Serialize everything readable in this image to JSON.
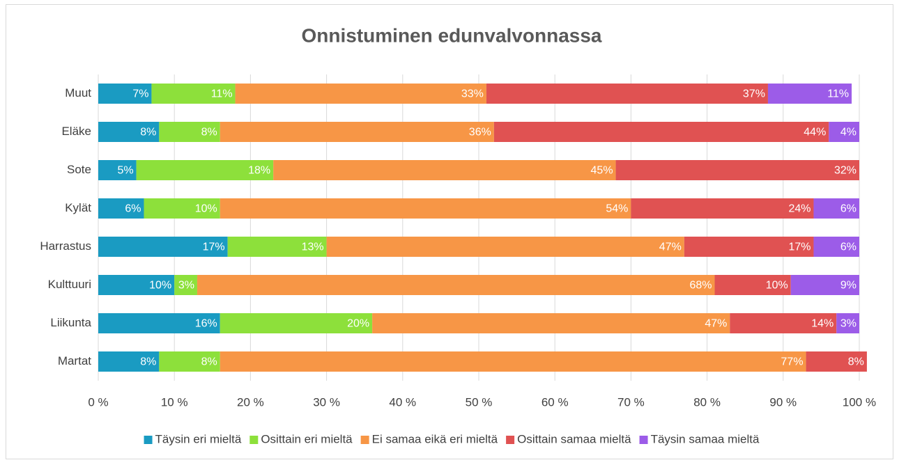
{
  "chart_data": {
    "type": "stacked_bar_horizontal",
    "title": "Onnistuminen edunvalvonnassa",
    "categories": [
      "Muut",
      "Eläke",
      "Sote",
      "Kylät",
      "Harrastus",
      "Kulttuuri",
      "Liikunta",
      "Martat"
    ],
    "series": [
      {
        "name": "Täysin eri mieltä",
        "color": "#1a9bc2",
        "values": [
          7,
          8,
          5,
          6,
          17,
          10,
          16,
          8
        ],
        "value_labels": [
          "7%",
          "8%",
          "5%",
          "6%",
          "17%",
          "10%",
          "16%",
          "8%"
        ]
      },
      {
        "name": "Osittain eri mieltä",
        "color": "#8de03b",
        "values": [
          11,
          8,
          18,
          10,
          13,
          3,
          20,
          8
        ],
        "value_labels": [
          "11%",
          "8%",
          "18%",
          "10%",
          "13%",
          "3%",
          "20%",
          "8%"
        ]
      },
      {
        "name": "Ei samaa eikä eri mieltä",
        "color": "#f79646",
        "values": [
          33,
          36,
          45,
          54,
          47,
          68,
          47,
          77
        ],
        "value_labels": [
          "33%",
          "36%",
          "45%",
          "54%",
          "47%",
          "68%",
          "47%",
          "77%"
        ]
      },
      {
        "name": "Osittain samaa mieltä",
        "color": "#e05252",
        "values": [
          37,
          44,
          32,
          24,
          17,
          10,
          14,
          8
        ],
        "value_labels": [
          "37%",
          "44%",
          "32%",
          "24%",
          "17%",
          "10%",
          "14%",
          "8%"
        ]
      },
      {
        "name": "Täysin samaa mieltä",
        "color": "#9c5ce8",
        "values": [
          11,
          4,
          null,
          6,
          6,
          9,
          3,
          null
        ],
        "value_labels": [
          "11%",
          "4%",
          null,
          "6%",
          "6%",
          "9%",
          "3%",
          null
        ]
      }
    ],
    "xlim": [
      0,
      100
    ],
    "xticks": [
      {
        "value": 0,
        "label": "0 %"
      },
      {
        "value": 10,
        "label": "10 %"
      },
      {
        "value": 20,
        "label": "20 %"
      },
      {
        "value": 30,
        "label": "30 %"
      },
      {
        "value": 40,
        "label": "40 %"
      },
      {
        "value": 50,
        "label": "50 %"
      },
      {
        "value": 60,
        "label": "60 %"
      },
      {
        "value": 70,
        "label": "70 %"
      },
      {
        "value": 80,
        "label": "80 %"
      },
      {
        "value": 90,
        "label": "90 %"
      },
      {
        "value": 100,
        "label": "100 %"
      }
    ],
    "grid": true,
    "legend": "bottom"
  }
}
